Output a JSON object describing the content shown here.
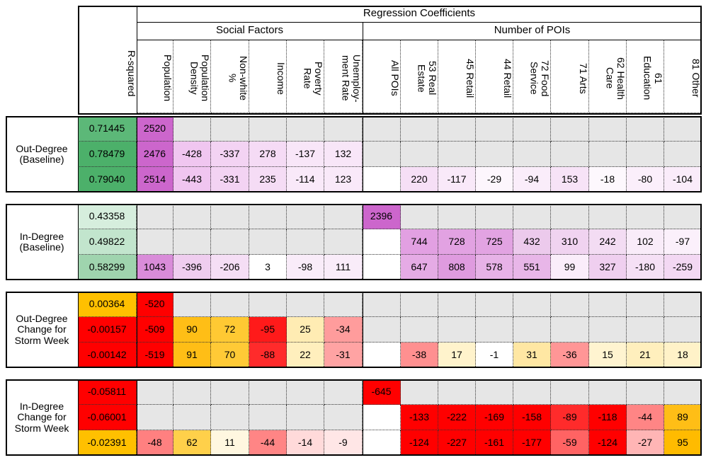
{
  "header": {
    "title": "Regression Coefficients",
    "r_squared": "R-squared",
    "social_factors": "Social Factors",
    "number_of_pois": "Number of POIs",
    "columns": [
      "Population",
      "Population\nDensity",
      "Non-white\n%",
      "Income",
      "Poverty\nRate",
      "Unemploy-\nment Rate",
      "All POIs",
      "53 Real\nEstate",
      "45 Retail",
      "44 Retail",
      "72 Food\nService",
      "71 Arts",
      "62 Health\nCare",
      "61\nEducation",
      "81 Other"
    ]
  },
  "groups": [
    {
      "label": "Out-Degree (Baseline)",
      "rows": [
        {
          "r_squared": "0.71445",
          "r_squared_color": "#5cb878",
          "values": [
            "2520",
            null,
            null,
            null,
            null,
            null,
            null,
            null,
            null,
            null,
            null,
            null,
            null,
            null,
            null
          ],
          "colors": [
            "#cc66cc",
            null,
            null,
            null,
            null,
            null,
            null,
            null,
            null,
            null,
            null,
            null,
            null,
            null,
            null
          ]
        },
        {
          "r_squared": "0.78479",
          "r_squared_color": "#4cb06a",
          "values": [
            "2476",
            "-428",
            "-337",
            "278",
            "-137",
            "132",
            null,
            null,
            null,
            null,
            null,
            null,
            null,
            null,
            null
          ],
          "colors": [
            "#cc66cc",
            "#f0c6f0",
            "#f3d3f3",
            "#f5dbf5",
            "#f8e6f8",
            "#f8e6f8",
            null,
            null,
            null,
            null,
            null,
            null,
            null,
            null,
            null
          ]
        },
        {
          "r_squared": "0.79040",
          "r_squared_color": "#4cb06a",
          "values": [
            "2514",
            "-443",
            "-331",
            "235",
            "-114",
            "123",
            null,
            "220",
            "-117",
            "-29",
            "-94",
            "153",
            "-18",
            "-80",
            "-104"
          ],
          "colors": [
            "#cc66cc",
            "#f0c5f0",
            "#f3d3f3",
            "#f5dcf5",
            "#f9e9f9",
            "#f9e9f9",
            "#ffffff",
            "#f6dff6",
            "#f9e9f9",
            "#fdf6fd",
            "#faedfa",
            "#f7e3f7",
            "#fdf8fd",
            "#fbeffb",
            "#faecfa"
          ]
        }
      ]
    },
    {
      "label": "In-Degree (Baseline)",
      "rows": [
        {
          "r_squared": "0.43358",
          "r_squared_color": "#d6eedd",
          "values": [
            null,
            null,
            null,
            null,
            null,
            null,
            "2396",
            null,
            null,
            null,
            null,
            null,
            null,
            null,
            null
          ],
          "colors": [
            null,
            null,
            null,
            null,
            null,
            null,
            "#cc66cc",
            null,
            null,
            null,
            null,
            null,
            null,
            null,
            null
          ]
        },
        {
          "r_squared": "0.49822",
          "r_squared_color": "#c2e5cd",
          "values": [
            null,
            null,
            null,
            null,
            null,
            null,
            null,
            "744",
            "728",
            "725",
            "432",
            "310",
            "242",
            "102",
            "-97"
          ],
          "colors": [
            null,
            null,
            null,
            null,
            null,
            null,
            "#ffffff",
            "#e2a0e2",
            "#e2a2e2",
            "#e2a3e2",
            "#eccaec",
            "#f0d3f0",
            "#f3dcf3",
            "#f9ecf9",
            "#fbf0fb"
          ]
        },
        {
          "r_squared": "0.58299",
          "r_squared_color": "#9fd4ae",
          "values": [
            "1043",
            "-396",
            "-206",
            "3",
            "-98",
            "111",
            null,
            "647",
            "808",
            "578",
            "551",
            "99",
            "327",
            "-180",
            "-259"
          ],
          "colors": [
            "#d98cd9",
            "#efcdef",
            "#f5def5",
            "#ffffff",
            "#f9ecf9",
            "#f9ecf9",
            "#ffffff",
            "#e5abe5",
            "#df9bdf",
            "#e7b2e7",
            "#e8b6e8",
            "#faedfa",
            "#efcfef",
            "#f5e0f5",
            "#f3d8f3"
          ]
        }
      ]
    },
    {
      "label": "Out-Degree Change for Storm Week",
      "rows": [
        {
          "r_squared": "0.00364",
          "r_squared_color": "#ffc000",
          "values": [
            "-520",
            null,
            null,
            null,
            null,
            null,
            null,
            null,
            null,
            null,
            null,
            null,
            null,
            null,
            null
          ],
          "colors": [
            "#ff0000",
            null,
            null,
            null,
            null,
            null,
            null,
            null,
            null,
            null,
            null,
            null,
            null,
            null,
            null
          ]
        },
        {
          "r_squared": "-0.00157",
          "r_squared_color": "#ff0000",
          "values": [
            "-509",
            "90",
            "72",
            "-95",
            "25",
            "-34",
            null,
            null,
            null,
            null,
            null,
            null,
            null,
            null,
            null
          ],
          "colors": [
            "#ff0000",
            "#ffbe16",
            "#ffc933",
            "#ff1a1a",
            "#ffecb3",
            "#ff9c9c",
            null,
            null,
            null,
            null,
            null,
            null,
            null,
            null,
            null
          ]
        },
        {
          "r_squared": "-0.00142",
          "r_squared_color": "#ff0000",
          "values": [
            "-519",
            "91",
            "70",
            "-88",
            "22",
            "-31",
            null,
            "-38",
            "17",
            "-1",
            "31",
            "-36",
            "15",
            "21",
            "18"
          ],
          "colors": [
            "#ff0000",
            "#ffbe16",
            "#ffca36",
            "#ff2b2b",
            "#ffefbd",
            "#ffa3a3",
            "#ffffff",
            "#ff9090",
            "#fff3cc",
            "#ffffff",
            "#ffe7a3",
            "#ff9696",
            "#fff4d0",
            "#ffefbd",
            "#fff2c8"
          ]
        }
      ]
    },
    {
      "label": "In-Degree Change for Storm Week",
      "rows": [
        {
          "r_squared": "-0.05811",
          "r_squared_color": "#ff0000",
          "values": [
            null,
            null,
            null,
            null,
            null,
            null,
            "-645",
            null,
            null,
            null,
            null,
            null,
            null,
            null,
            null
          ],
          "colors": [
            null,
            null,
            null,
            null,
            null,
            null,
            "#ff0000",
            null,
            null,
            null,
            null,
            null,
            null,
            null,
            null
          ]
        },
        {
          "r_squared": "-0.06001",
          "r_squared_color": "#ff0000",
          "values": [
            null,
            null,
            null,
            null,
            null,
            null,
            null,
            "-133",
            "-222",
            "-169",
            "-158",
            "-89",
            "-118",
            "-44",
            "89"
          ],
          "colors": [
            null,
            null,
            null,
            null,
            null,
            null,
            "#ffffff",
            "#ff0000",
            "#ff0000",
            "#ff0000",
            "#ff0000",
            "#ff2b2b",
            "#ff0000",
            "#ff8585",
            "#ffbe16"
          ]
        },
        {
          "r_squared": "-0.02391",
          "r_squared_color": "#ffc000",
          "values": [
            "-48",
            "62",
            "11",
            "-44",
            "-14",
            "-9",
            null,
            "-124",
            "-227",
            "-161",
            "-177",
            "-59",
            "-124",
            "-27",
            "95"
          ],
          "colors": [
            "#ff8080",
            "#ffd04a",
            "#fff7e0",
            "#ff8585",
            "#ffdada",
            "#ffe6e6",
            "#ffffff",
            "#ff0000",
            "#ff0000",
            "#ff0000",
            "#ff0000",
            "#ff6363",
            "#ff0000",
            "#ffb5b5",
            "#ffbb00"
          ]
        }
      ]
    }
  ]
}
